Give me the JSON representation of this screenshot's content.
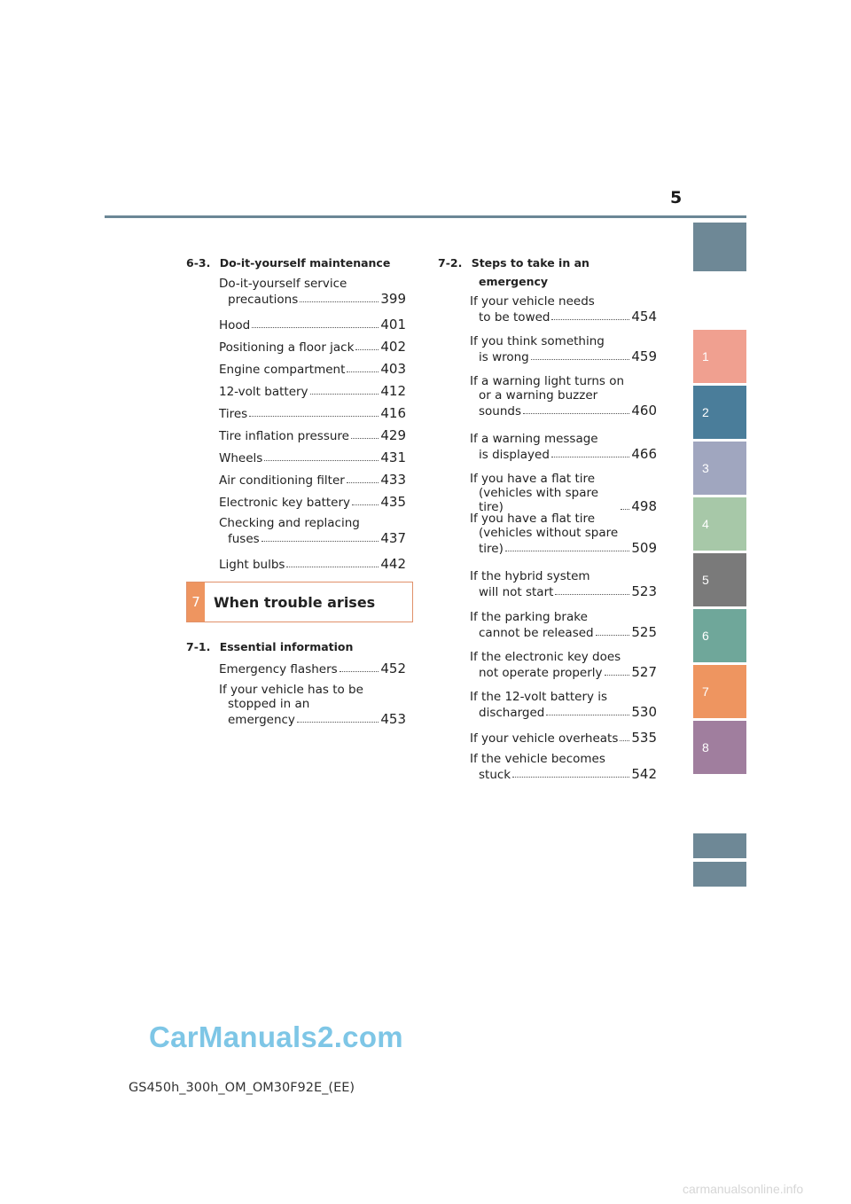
{
  "page_number": "5",
  "tabs": [
    {
      "label": "",
      "color": "#6e8896"
    },
    {
      "label": "1",
      "color": "#f0a090"
    },
    {
      "label": "2",
      "color": "#4a7d9a"
    },
    {
      "label": "3",
      "color": "#a0a6bf"
    },
    {
      "label": "4",
      "color": "#a7c8a8"
    },
    {
      "label": "5",
      "color": "#7a7a7a"
    },
    {
      "label": "6",
      "color": "#6fa79a"
    },
    {
      "label": "7",
      "color": "#ee9560"
    },
    {
      "label": "8",
      "color": "#a07e9e"
    },
    {
      "label": "",
      "color": "#6e8896"
    },
    {
      "label": "",
      "color": "#6e8896"
    }
  ],
  "left_column": {
    "section_6_3": {
      "number": "6-3.",
      "title": "Do-it-yourself maintenance",
      "entries": [
        {
          "line1": "Do-it-yourself service",
          "line2": "precautions",
          "page": "399"
        },
        {
          "line1": "Hood",
          "page": "401"
        },
        {
          "line1": "Positioning a floor jack",
          "page": "402"
        },
        {
          "line1": "Engine compartment",
          "page": "403"
        },
        {
          "line1": "12-volt battery",
          "page": "412"
        },
        {
          "line1": "Tires",
          "page": "416"
        },
        {
          "line1": "Tire inflation pressure",
          "page": "429"
        },
        {
          "line1": "Wheels",
          "page": "431"
        },
        {
          "line1": "Air conditioning filter",
          "page": "433"
        },
        {
          "line1": "Electronic key battery",
          "page": "435"
        },
        {
          "line1": "Checking and replacing",
          "line2": "fuses",
          "page": "437"
        },
        {
          "line1": "Light bulbs",
          "page": "442"
        }
      ]
    },
    "chapter": {
      "number": "7",
      "title": "When trouble arises"
    },
    "section_7_1": {
      "number": "7-1.",
      "title": "Essential information",
      "entries": [
        {
          "line1": "Emergency flashers",
          "page": "452"
        },
        {
          "line1": "If your vehicle has to be",
          "line2": "stopped in an",
          "line3": "emergency",
          "page": "453"
        }
      ]
    }
  },
  "right_column": {
    "section_7_2": {
      "number": "7-2.",
      "title_line1": "Steps to take in an",
      "title_line2": "emergency",
      "entries": [
        {
          "line1": "If your vehicle needs",
          "line2": "to be towed",
          "page": "454"
        },
        {
          "line1": "If you think something",
          "line2": "is wrong",
          "page": "459"
        },
        {
          "line1": "If a warning light turns on",
          "line2": "or a warning buzzer",
          "line3": "sounds",
          "page": "460"
        },
        {
          "line1": "If a warning message",
          "line2": "is displayed",
          "page": "466"
        },
        {
          "line1": "If you have a flat tire",
          "line2": "(vehicles with spare tire)",
          "page": "498"
        },
        {
          "line1": "If you have a flat tire",
          "line2": "(vehicles without spare",
          "line3": "tire)",
          "page": "509"
        },
        {
          "line1": "If the hybrid system",
          "line2": "will not start",
          "page": "523"
        },
        {
          "line1": "If the parking brake",
          "line2": "cannot be released",
          "page": "525"
        },
        {
          "line1": "If the electronic key does",
          "line2": "not operate properly",
          "page": "527"
        },
        {
          "line1": "If the 12-volt battery is",
          "line2": "discharged",
          "page": "530"
        },
        {
          "line1": "If your vehicle overheats",
          "page": "535"
        },
        {
          "line1": "If the vehicle becomes",
          "line2": "stuck",
          "page": "542"
        }
      ]
    }
  },
  "watermark": "CarManuals2.com",
  "footer_code": "GS450h_300h_OM_OM30F92E_(EE)",
  "site_mark": "carmanualsonline.info"
}
